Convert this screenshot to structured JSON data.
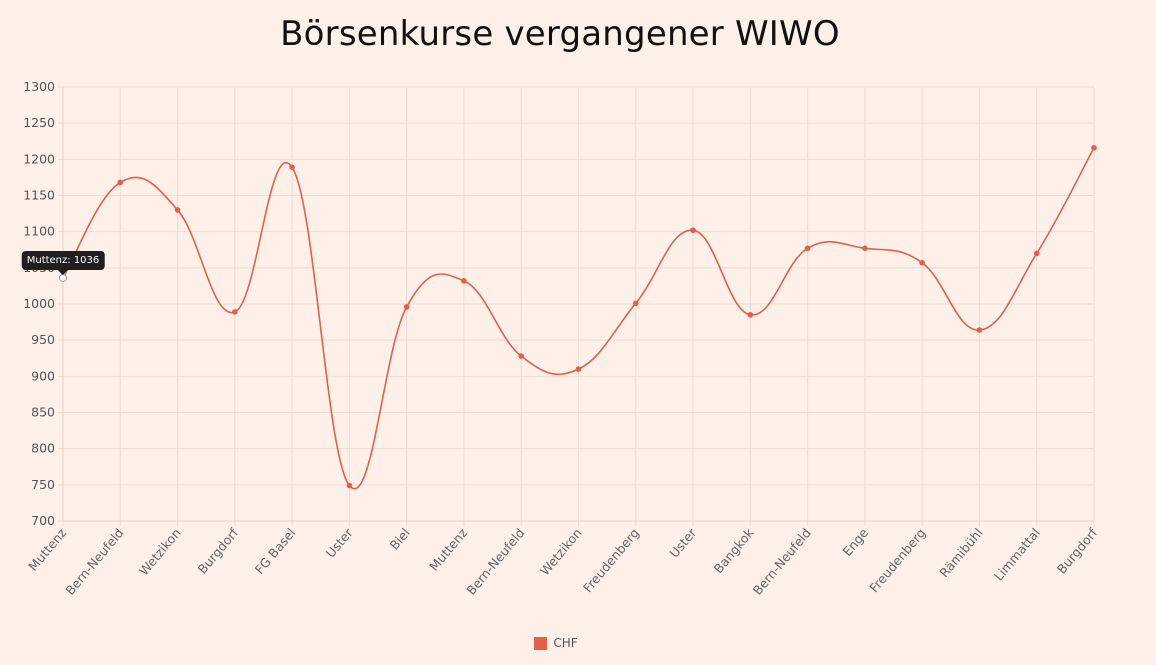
{
  "chart_data": {
    "type": "line",
    "title": "Börsenkurse vergangener WIWO",
    "categories": [
      "Muttenz",
      "Bern-Neufeld",
      "Wetzikon",
      "Burgdorf",
      "FG Basel",
      "Uster",
      "Biel",
      "Muttenz",
      "Bern-Neufeld",
      "Wetzikon",
      "Freudenberg",
      "Uster",
      "Bangkok",
      "Bern-Neufeld",
      "Enge",
      "Freudenberg",
      "Rämibühl",
      "Limmattal",
      "Burgdorf"
    ],
    "series": [
      {
        "name": "CHF",
        "values": [
          1036,
          1168,
          1130,
          989,
          1189,
          749,
          996,
          1032,
          928,
          910,
          1001,
          1102,
          985,
          1077,
          1077,
          1057,
          964,
          1070,
          1216
        ]
      }
    ],
    "ylim": [
      700,
      1300
    ],
    "yticks": [
      700,
      750,
      800,
      850,
      900,
      950,
      1000,
      1050,
      1100,
      1150,
      1200,
      1250,
      1300
    ],
    "grid": true,
    "legend_position": "bottom",
    "line_color": "#e0604a",
    "tooltip": {
      "text": "Muttenz: 1036",
      "index": 0
    }
  }
}
